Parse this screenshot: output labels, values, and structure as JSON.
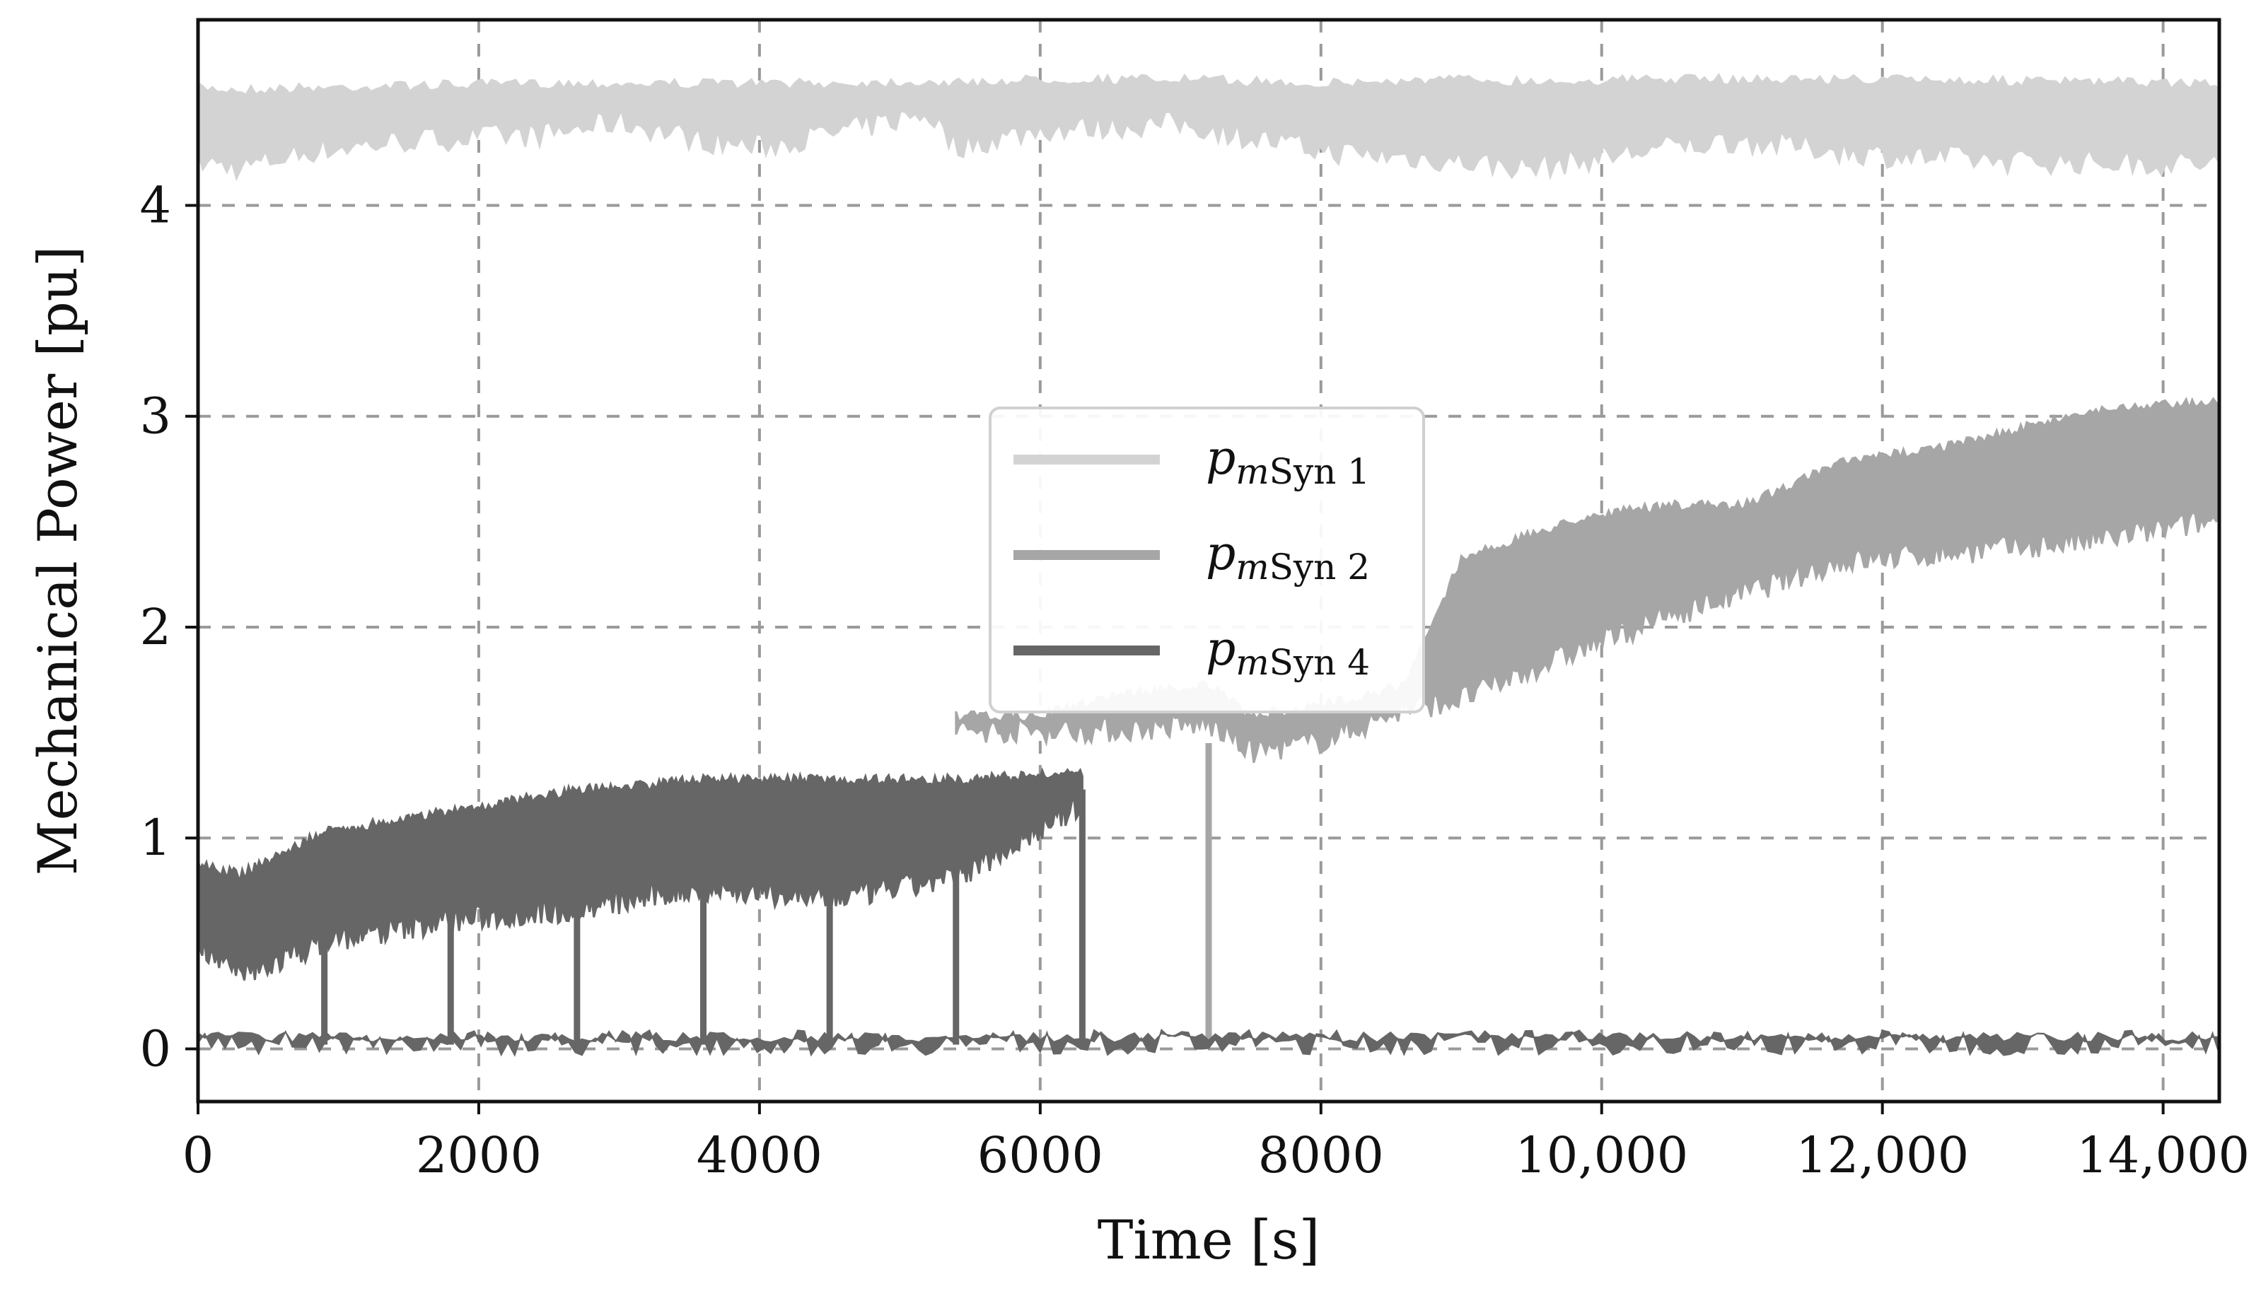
{
  "chart_data": {
    "type": "line",
    "xlabel": "Time [s]",
    "ylabel": "Mechanical Power [pu]",
    "xlim": [
      0,
      14400
    ],
    "ylim": [
      -0.25,
      4.88
    ],
    "xticks": [
      0,
      2000,
      4000,
      6000,
      8000,
      10000,
      12000,
      14000
    ],
    "xtick_labels": [
      "0",
      "2000",
      "4000",
      "6000",
      "8000",
      "10,000",
      "12,000",
      "14,000"
    ],
    "yticks": [
      0,
      1,
      2,
      3,
      4
    ],
    "ytick_labels": [
      "0",
      "1",
      "2",
      "3",
      "4"
    ],
    "grid": true,
    "legend_position": "center",
    "series": [
      {
        "name": "p",
        "name_italic_sub": "m",
        "name_sub": "Syn 1",
        "color": "#d3d3d3",
        "x": [
          0,
          300,
          800,
          1500,
          2500,
          3000,
          3600,
          4000,
          4500,
          5200,
          5400,
          6000,
          7000,
          8000,
          9000,
          9500,
          10500,
          11000,
          12000,
          13000,
          14400
        ],
        "upper": [
          4.58,
          4.57,
          4.58,
          4.59,
          4.6,
          4.6,
          4.6,
          4.6,
          4.6,
          4.61,
          4.6,
          4.62,
          4.62,
          4.6,
          4.62,
          4.61,
          4.62,
          4.62,
          4.62,
          4.61,
          4.6
        ],
        "lower": [
          4.15,
          4.12,
          4.2,
          4.25,
          4.28,
          4.34,
          4.25,
          4.22,
          4.28,
          4.38,
          4.22,
          4.3,
          4.33,
          4.2,
          4.15,
          4.12,
          4.22,
          4.25,
          4.18,
          4.15,
          4.14
        ]
      },
      {
        "name": "p",
        "name_italic_sub": "m",
        "name_sub": "Syn 2",
        "color": "#a6a6a6",
        "x": [
          5400,
          6000,
          6500,
          7200,
          7500,
          8000,
          8600,
          9000,
          9900,
          10500,
          11000,
          11700,
          12600,
          13500,
          14400
        ],
        "upper": [
          1.6,
          1.6,
          1.7,
          1.75,
          1.6,
          1.65,
          1.75,
          2.35,
          2.55,
          2.6,
          2.6,
          2.8,
          2.9,
          3.05,
          3.1
        ],
        "lower": [
          1.45,
          1.45,
          1.45,
          1.48,
          1.35,
          1.4,
          1.55,
          1.6,
          1.85,
          2.0,
          2.1,
          2.25,
          2.3,
          2.35,
          2.45
        ]
      },
      {
        "name": "p",
        "name_italic_sub": "m",
        "name_sub": "Syn 4",
        "color": "#666666",
        "x": [
          0,
          300,
          900,
          1800,
          2700,
          3600,
          4500,
          5400,
          6300
        ],
        "upper": [
          0.9,
          0.85,
          1.05,
          1.15,
          1.25,
          1.3,
          1.3,
          1.3,
          1.33
        ],
        "lower": [
          0.45,
          0.28,
          0.45,
          0.55,
          0.6,
          0.7,
          0.65,
          0.75,
          1.1
        ]
      }
    ],
    "baseline": {
      "color": "#666666",
      "value": 0.02,
      "band": [
        -0.03,
        0.08
      ]
    },
    "switch_times": [
      900,
      1800,
      2700,
      3600,
      4500,
      5400,
      6300,
      7200
    ]
  }
}
